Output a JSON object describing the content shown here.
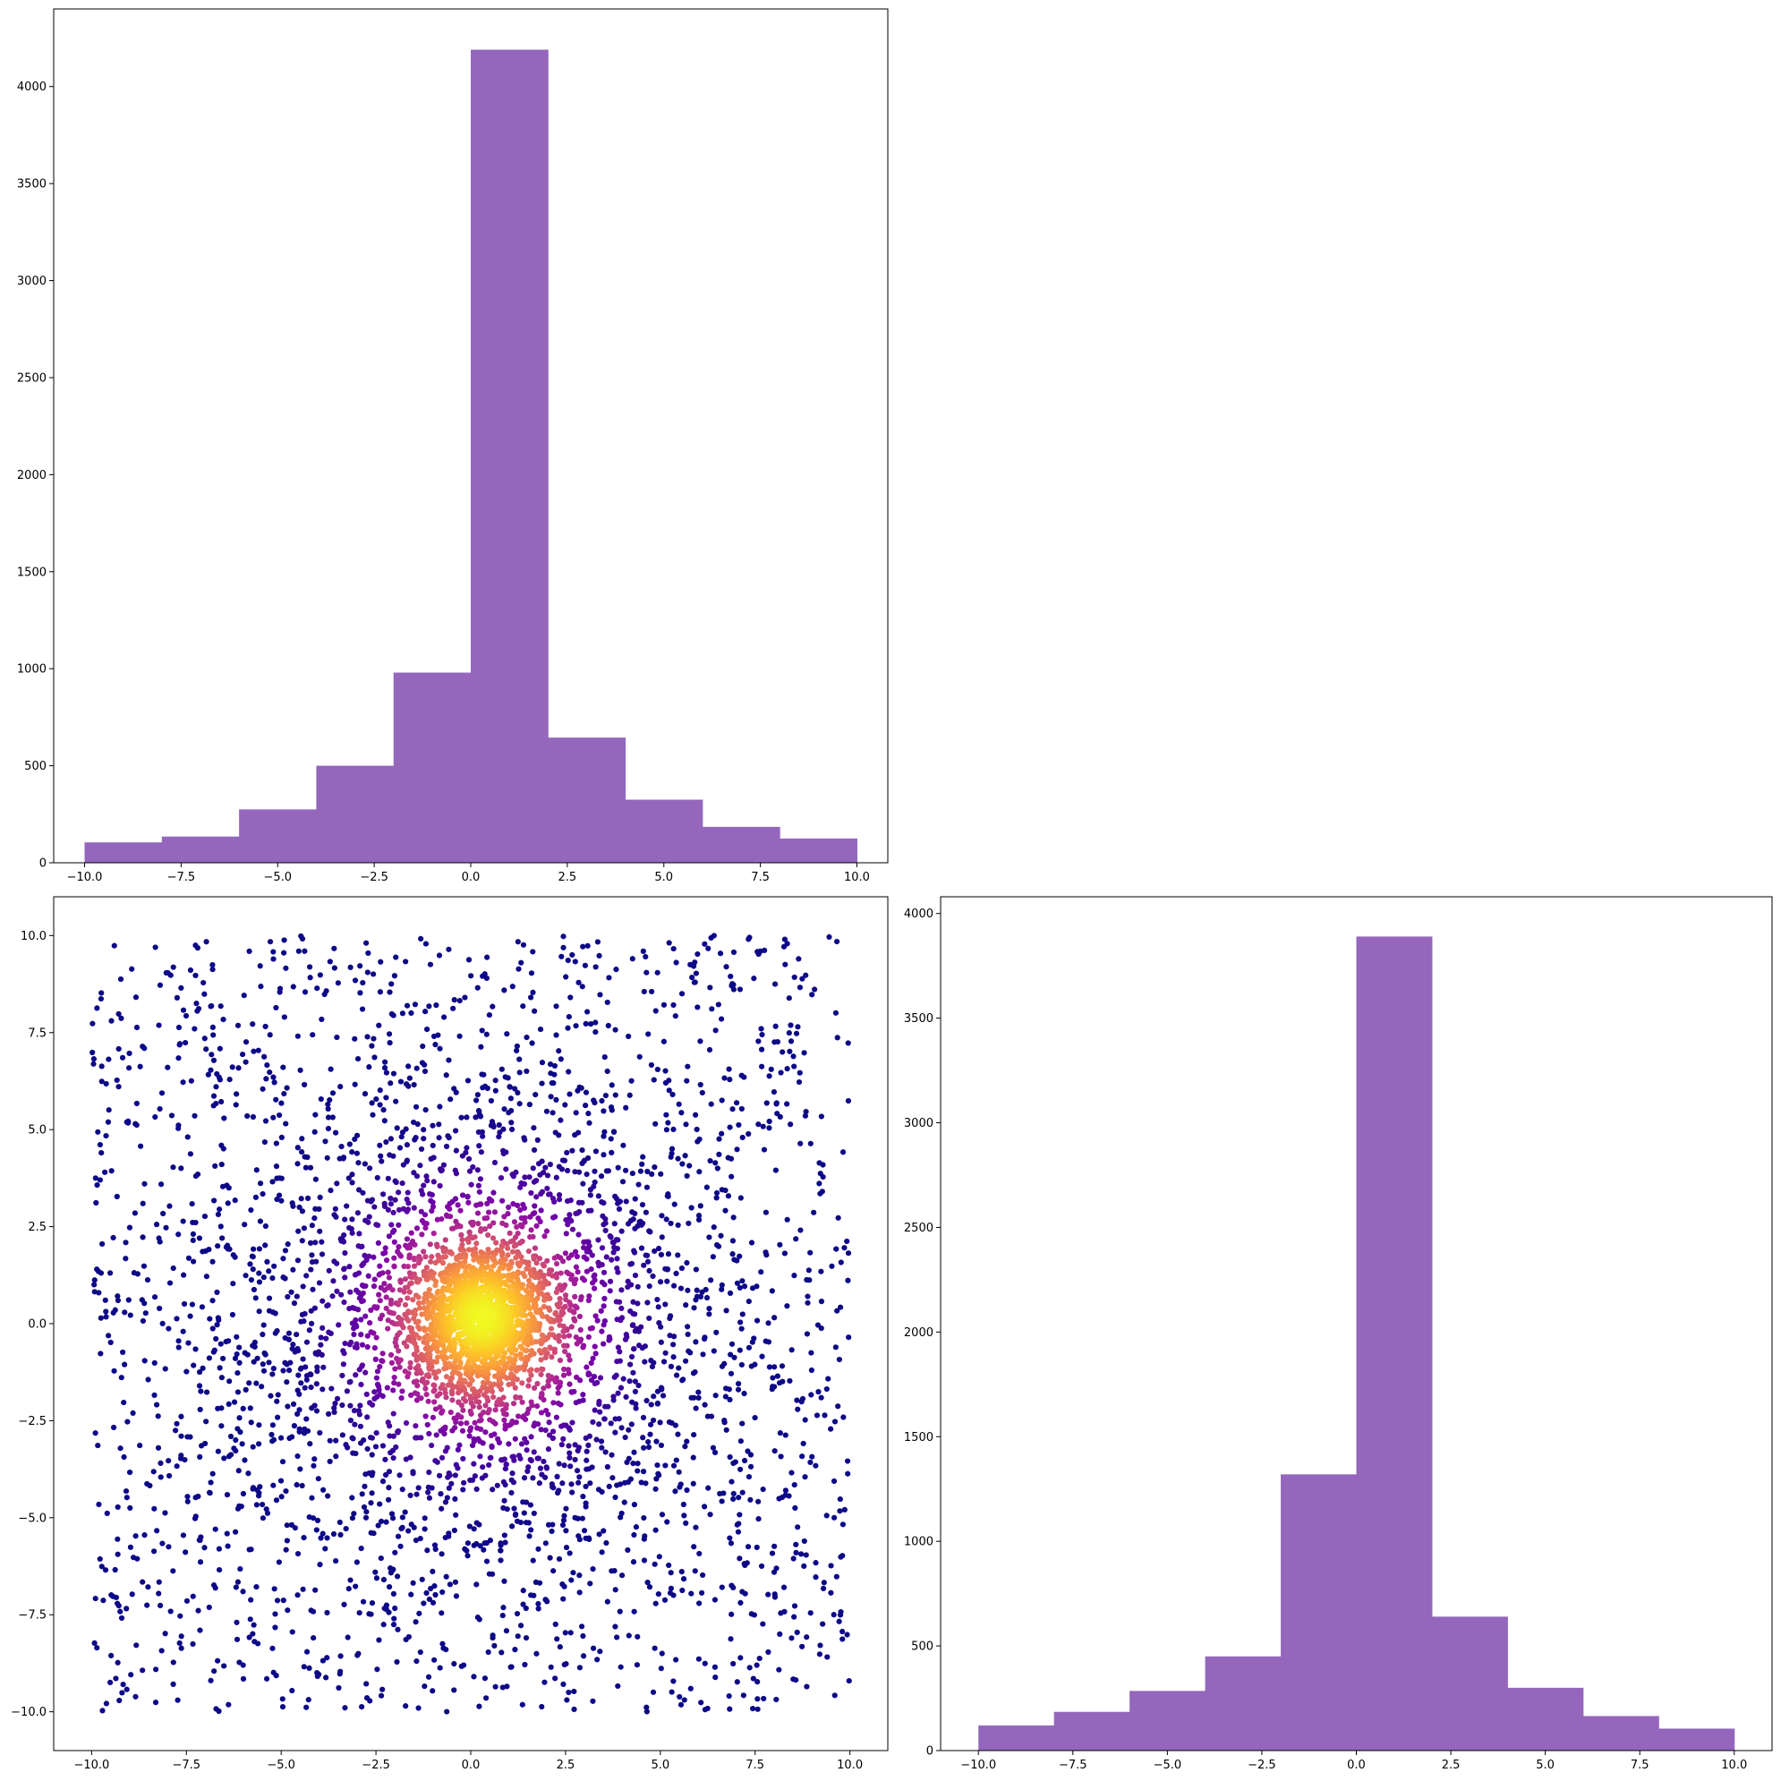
{
  "chart_data": [
    {
      "panel": "top-left",
      "type": "bar",
      "subtype": "histogram",
      "bin_edges": [
        -10,
        -8,
        -6,
        -4,
        -2,
        0,
        2,
        4,
        6,
        8,
        10
      ],
      "values": [
        105,
        135,
        275,
        500,
        980,
        4190,
        645,
        325,
        185,
        125
      ],
      "xlim": [
        -10.8,
        10.8
      ],
      "ylim": [
        0,
        4400
      ],
      "xticks": [
        -10,
        -7.5,
        -5,
        -2.5,
        0,
        2.5,
        5,
        7.5,
        10
      ],
      "xtick_labels": [
        "−10.0",
        "−7.5",
        "−5.0",
        "−2.5",
        "0.0",
        "2.5",
        "5.0",
        "7.5",
        "10.0"
      ],
      "yticks": [
        0,
        500,
        1000,
        1500,
        2000,
        2500,
        3000,
        3500,
        4000
      ],
      "ytick_labels": [
        "0",
        "500",
        "1000",
        "1500",
        "2000",
        "2500",
        "3000",
        "3500",
        "4000"
      ],
      "color": "#9467bd",
      "title": "",
      "xlabel": "",
      "ylabel": ""
    },
    {
      "panel": "bottom-left",
      "type": "scatter",
      "colormap": "plasma",
      "color_by": "density",
      "n_points": 5000,
      "distribution": "dense core near (0.3, 0.2) with a wide uniform background over [-10, 10] x [-10, 10]",
      "xlim": [
        -11,
        11
      ],
      "ylim": [
        -11,
        11
      ],
      "xticks": [
        -10,
        -7.5,
        -5,
        -2.5,
        0,
        2.5,
        5,
        7.5,
        10
      ],
      "xtick_labels": [
        "−10.0",
        "−7.5",
        "−5.0",
        "−2.5",
        "0.0",
        "2.5",
        "5.0",
        "7.5",
        "10.0"
      ],
      "yticks": [
        -10,
        -7.5,
        -5,
        -2.5,
        0,
        2.5,
        5,
        7.5,
        10
      ],
      "ytick_labels": [
        "−10.0",
        "−7.5",
        "−5.0",
        "−2.5",
        "0.0",
        "2.5",
        "5.0",
        "7.5",
        "10.0"
      ],
      "title": "",
      "xlabel": "",
      "ylabel": ""
    },
    {
      "panel": "bottom-right",
      "type": "bar",
      "subtype": "histogram",
      "bin_edges": [
        -10,
        -8,
        -6,
        -4,
        -2,
        0,
        2,
        4,
        6,
        8,
        10
      ],
      "values": [
        120,
        185,
        285,
        450,
        1320,
        3890,
        640,
        300,
        165,
        105
      ],
      "xlim": [
        -11,
        11
      ],
      "ylim": [
        0,
        4080
      ],
      "xticks": [
        -10,
        -7.5,
        -5,
        -2.5,
        0,
        2.5,
        5,
        7.5,
        10
      ],
      "xtick_labels": [
        "−10.0",
        "−7.5",
        "−5.0",
        "−2.5",
        "0.0",
        "2.5",
        "5.0",
        "7.5",
        "10.0"
      ],
      "yticks": [
        0,
        500,
        1000,
        1500,
        2000,
        2500,
        3000,
        3500,
        4000
      ],
      "ytick_labels": [
        "0",
        "500",
        "1000",
        "1500",
        "2000",
        "2500",
        "3000",
        "3500",
        "4000"
      ],
      "color": "#9467bd",
      "title": "",
      "xlabel": "",
      "ylabel": ""
    }
  ]
}
